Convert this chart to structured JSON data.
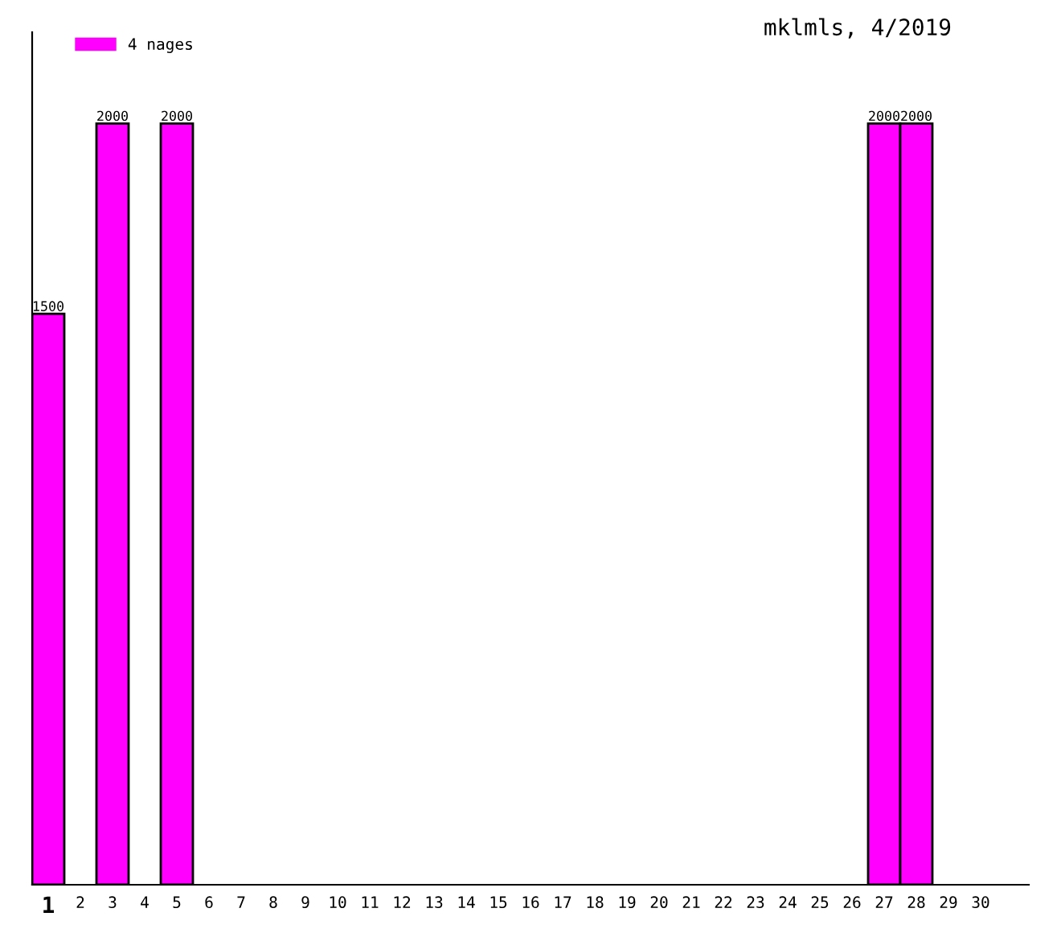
{
  "chart_data": {
    "type": "bar",
    "title": "mklmls, 4/2019",
    "categories": [
      "1",
      "2",
      "3",
      "4",
      "5",
      "6",
      "7",
      "8",
      "9",
      "10",
      "11",
      "12",
      "13",
      "14",
      "15",
      "16",
      "17",
      "18",
      "19",
      "20",
      "21",
      "22",
      "23",
      "24",
      "25",
      "26",
      "27",
      "28",
      "29",
      "30"
    ],
    "series": [
      {
        "name": "4 nages",
        "color": "#ff00ff",
        "values": [
          1500,
          null,
          2000,
          null,
          2000,
          null,
          null,
          null,
          null,
          null,
          null,
          null,
          null,
          null,
          null,
          null,
          null,
          null,
          null,
          null,
          null,
          null,
          null,
          null,
          null,
          null,
          2000,
          2000,
          null,
          null
        ]
      }
    ],
    "data_labels": true,
    "legend": "top left",
    "grid": false
  }
}
